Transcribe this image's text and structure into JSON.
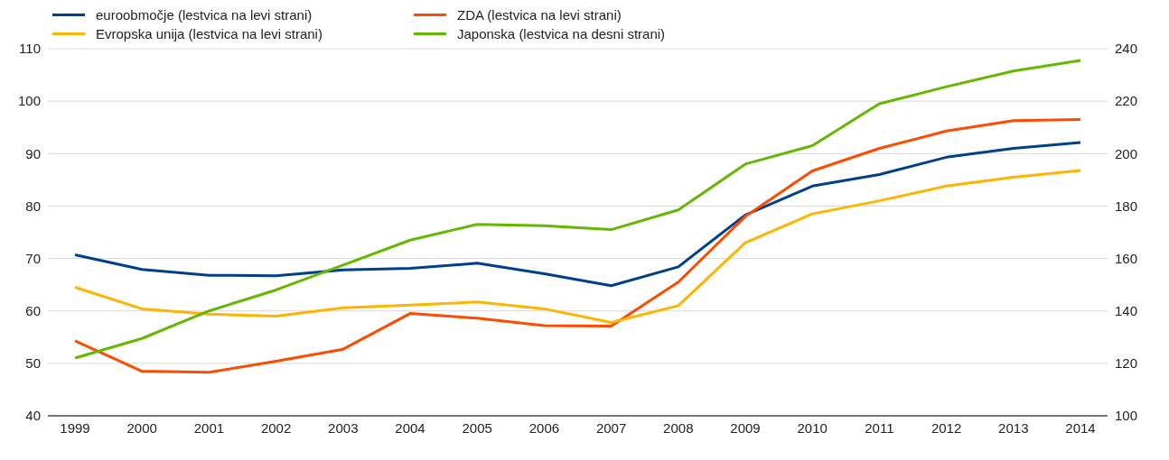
{
  "chart_data": {
    "type": "line",
    "categories": [
      "1999",
      "2000",
      "2001",
      "2002",
      "2003",
      "2004",
      "2005",
      "2006",
      "2007",
      "2008",
      "2009",
      "2010",
      "2011",
      "2012",
      "2013",
      "2014"
    ],
    "series": [
      {
        "name": "euroobmočje (lestvica na levi strani)",
        "color": "#003f8c",
        "values": [
          70.7,
          67.9,
          66.8,
          66.7,
          67.8,
          68.1,
          69.1,
          67.1,
          64.8,
          68.4,
          78.3,
          83.8,
          86.0,
          89.3,
          91.0,
          92.1
        ]
      },
      {
        "name": "ZDA (lestvica na levi strani)",
        "color": "#ff4b00",
        "values": [
          54.3,
          48.5,
          48.3,
          50.4,
          52.7,
          59.5,
          58.6,
          57.2,
          57.1,
          65.5,
          78.0,
          86.7,
          91.0,
          94.3,
          96.3,
          96.5
        ]
      },
      {
        "name": "Evropska unija (lestvica na levi strani)",
        "color": "#ffb400",
        "values": [
          64.5,
          60.4,
          59.4,
          59.0,
          60.6,
          61.1,
          61.7,
          60.4,
          57.8,
          61.0,
          73.0,
          78.5,
          81.0,
          83.8,
          85.5,
          86.8
        ]
      },
      {
        "name": "Japonska (lestvica na desni strani)",
        "color": "#65b800",
        "axis": "y2",
        "values": [
          122,
          129.5,
          140,
          148,
          157.5,
          167,
          173,
          172.5,
          171,
          178.5,
          196,
          203,
          219,
          225.5,
          231.5,
          235.5
        ]
      }
    ],
    "ylim": [
      40,
      110
    ],
    "yticks": [
      40,
      50,
      60,
      70,
      80,
      90,
      100,
      110
    ],
    "y2lim": [
      100,
      240
    ],
    "y2ticks": [
      100,
      120,
      140,
      160,
      180,
      200,
      220,
      240
    ],
    "grid": "y",
    "legend": "top left",
    "marker": "none",
    "line_style": "solid"
  }
}
